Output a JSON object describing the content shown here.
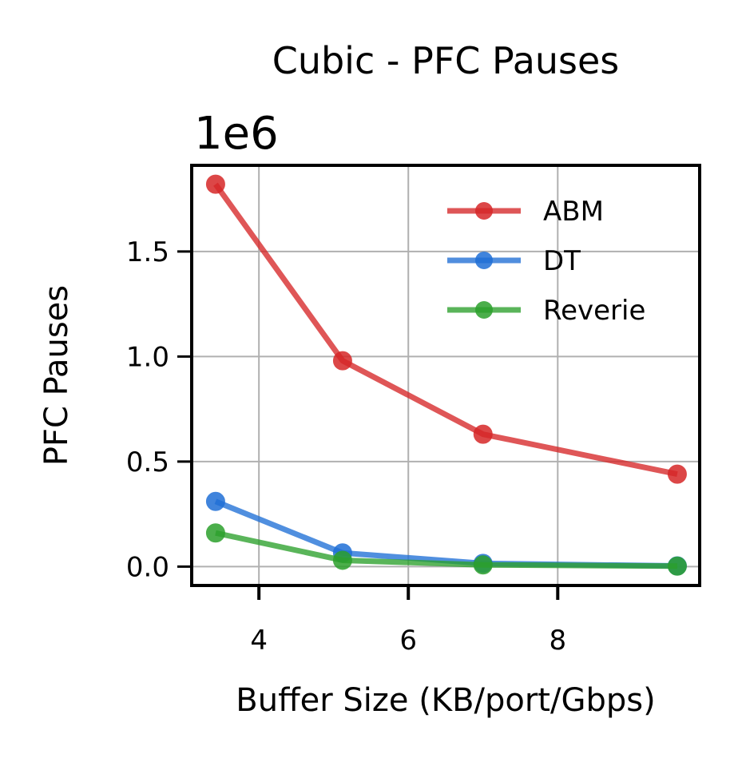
{
  "chart_data": {
    "type": "line",
    "title": "Cubic - PFC Pauses",
    "scale_label": "1e6",
    "xlabel": "Buffer Size (KB/port/Gbps)",
    "ylabel": "PFC Pauses",
    "xlim": [
      3.1,
      9.9
    ],
    "ylim": [
      -0.09,
      1.91
    ],
    "xticks": [
      4,
      6,
      8
    ],
    "xtick_labels": [
      "4",
      "6",
      "8"
    ],
    "yticks": [
      0.0,
      0.5,
      1.0,
      1.5
    ],
    "ytick_labels": [
      "0.0",
      "0.5",
      "1.0",
      "1.5"
    ],
    "grid": true,
    "legend_position": "top-right",
    "x": [
      3.42,
      5.12,
      7.0,
      9.6
    ],
    "series": [
      {
        "name": "ABM",
        "color": "#d62728",
        "values": [
          1.82,
          0.98,
          0.63,
          0.44
        ]
      },
      {
        "name": "DT",
        "color": "#1f6fd6",
        "values": [
          0.31,
          0.065,
          0.015,
          0.003
        ]
      },
      {
        "name": "Reverie",
        "color": "#2ca02c",
        "values": [
          0.16,
          0.03,
          0.008,
          0.002
        ]
      }
    ]
  }
}
